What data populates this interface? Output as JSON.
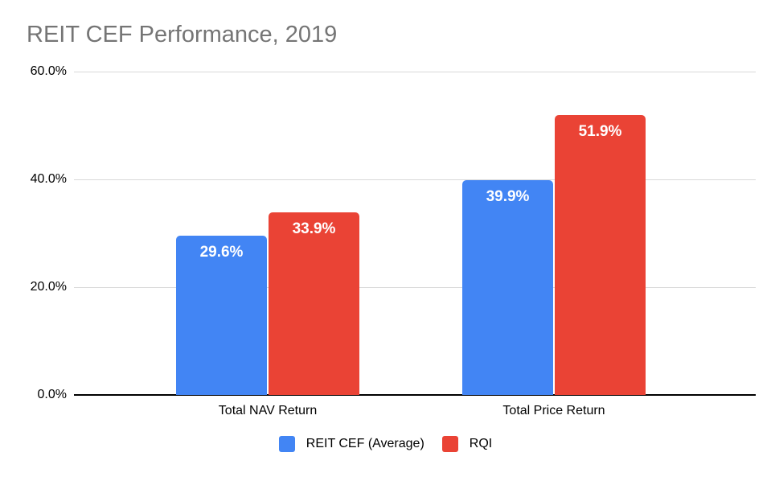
{
  "chart_data": {
    "type": "bar",
    "title": "REIT CEF Performance, 2019",
    "categories": [
      "Total NAV Return",
      "Total Price Return"
    ],
    "series": [
      {
        "name": "REIT CEF (Average)",
        "color": "#4285F4",
        "values": [
          29.6,
          39.9
        ],
        "value_labels": [
          "29.6%",
          "39.9%"
        ]
      },
      {
        "name": "RQI",
        "color": "#EA4335",
        "values": [
          33.9,
          51.9
        ],
        "value_labels": [
          "33.9%",
          "51.9%"
        ]
      }
    ],
    "xlabel": "",
    "ylabel": "",
    "ylim": [
      0,
      60
    ],
    "yticks": [
      0,
      20,
      40,
      60
    ],
    "ytick_labels": [
      "0.0%",
      "20.0%",
      "40.0%",
      "60.0%"
    ],
    "grid": true,
    "legend_position": "bottom"
  },
  "colors": {
    "title_text": "#757575",
    "gridline": "#D9D9D9",
    "axis_line": "#000000",
    "bar_label_text": "#FFFFFF",
    "background": "#FFFFFF"
  }
}
